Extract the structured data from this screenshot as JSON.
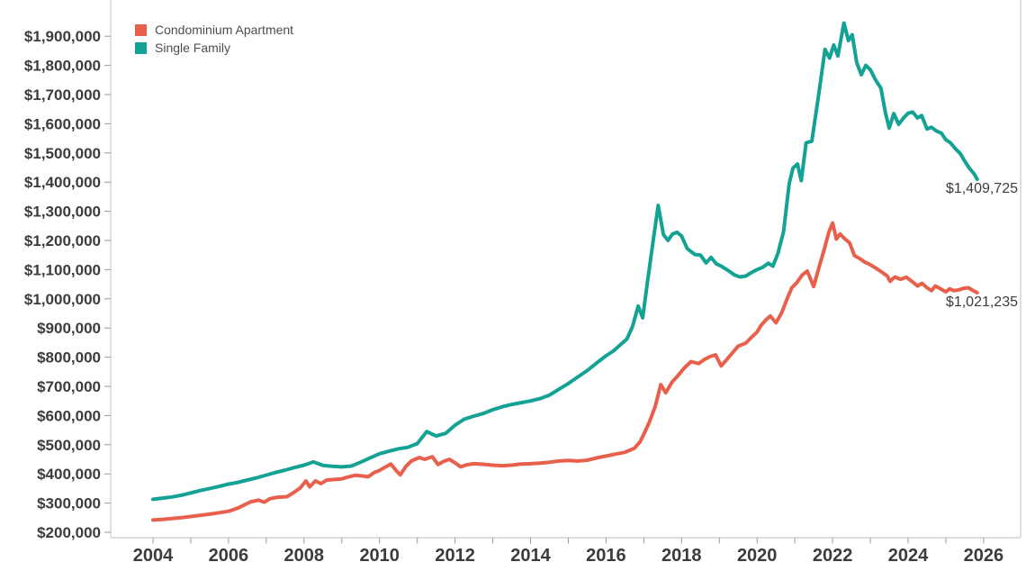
{
  "chart_data": {
    "type": "line",
    "title": "",
    "legend_position": "top-left",
    "grid": "off",
    "x_axis": {
      "label": "",
      "range": [
        2004,
        2026
      ],
      "minor_tick_step": 1,
      "major_tick_years": [
        2004,
        2006,
        2008,
        2010,
        2012,
        2014,
        2016,
        2018,
        2020,
        2022,
        2024,
        2026
      ],
      "major_tick_labels": [
        "2004",
        "2006",
        "2008",
        "2010",
        "2012",
        "2014",
        "2016",
        "2018",
        "2020",
        "2022",
        "2024",
        "2026"
      ]
    },
    "y_axis": {
      "label": "",
      "range": [
        200000,
        2050000
      ],
      "tick_values": [
        200000,
        300000,
        400000,
        500000,
        600000,
        700000,
        800000,
        900000,
        1000000,
        1100000,
        1200000,
        1300000,
        1400000,
        1500000,
        1600000,
        1700000,
        1800000,
        1900000
      ],
      "tick_labels": [
        "$200,000",
        "$300,000",
        "$400,000",
        "$500,000",
        "$600,000",
        "$700,000",
        "$800,000",
        "$900,000",
        "$1,000,000",
        "$1,100,000",
        "$1,200,000",
        "$1,300,000",
        "$1,400,000",
        "$1,500,000",
        "$1,600,000",
        "$1,700,000",
        "$1,800,000",
        "$1,900,000"
      ]
    },
    "series": [
      {
        "name": "Condominium Apartment",
        "color": "#E8604C",
        "end_label": "$1,021,235",
        "points": [
          [
            2004.0,
            242000
          ],
          [
            2004.25,
            244000
          ],
          [
            2004.5,
            247000
          ],
          [
            2004.75,
            250000
          ],
          [
            2005.0,
            254000
          ],
          [
            2005.25,
            258000
          ],
          [
            2005.5,
            262000
          ],
          [
            2005.75,
            267000
          ],
          [
            2006.0,
            272000
          ],
          [
            2006.25,
            283000
          ],
          [
            2006.45,
            296000
          ],
          [
            2006.6,
            305000
          ],
          [
            2006.8,
            310000
          ],
          [
            2006.95,
            303000
          ],
          [
            2007.1,
            315000
          ],
          [
            2007.3,
            320000
          ],
          [
            2007.55,
            322000
          ],
          [
            2007.75,
            338000
          ],
          [
            2007.9,
            352000
          ],
          [
            2008.05,
            376000
          ],
          [
            2008.15,
            356000
          ],
          [
            2008.3,
            376000
          ],
          [
            2008.45,
            367000
          ],
          [
            2008.6,
            379000
          ],
          [
            2008.8,
            381000
          ],
          [
            2009.0,
            383000
          ],
          [
            2009.15,
            389000
          ],
          [
            2009.35,
            395000
          ],
          [
            2009.55,
            393000
          ],
          [
            2009.7,
            390000
          ],
          [
            2009.85,
            404000
          ],
          [
            2010.0,
            412000
          ],
          [
            2010.15,
            423000
          ],
          [
            2010.3,
            434000
          ],
          [
            2010.45,
            410000
          ],
          [
            2010.55,
            397000
          ],
          [
            2010.7,
            426000
          ],
          [
            2010.85,
            445000
          ],
          [
            2011.05,
            456000
          ],
          [
            2011.2,
            450000
          ],
          [
            2011.4,
            459000
          ],
          [
            2011.55,
            432000
          ],
          [
            2011.7,
            443000
          ],
          [
            2011.85,
            450000
          ],
          [
            2012.0,
            438000
          ],
          [
            2012.15,
            424000
          ],
          [
            2012.3,
            431000
          ],
          [
            2012.5,
            435000
          ],
          [
            2012.75,
            433000
          ],
          [
            2013.0,
            430000
          ],
          [
            2013.25,
            428000
          ],
          [
            2013.5,
            430000
          ],
          [
            2013.75,
            434000
          ],
          [
            2014.0,
            435000
          ],
          [
            2014.25,
            437000
          ],
          [
            2014.5,
            440000
          ],
          [
            2014.75,
            444000
          ],
          [
            2015.0,
            446000
          ],
          [
            2015.25,
            444000
          ],
          [
            2015.5,
            447000
          ],
          [
            2015.75,
            455000
          ],
          [
            2016.0,
            461000
          ],
          [
            2016.25,
            468000
          ],
          [
            2016.5,
            474000
          ],
          [
            2016.75,
            488000
          ],
          [
            2016.9,
            510000
          ],
          [
            2017.02,
            542000
          ],
          [
            2017.15,
            578000
          ],
          [
            2017.3,
            630000
          ],
          [
            2017.45,
            706000
          ],
          [
            2017.58,
            678000
          ],
          [
            2017.75,
            715000
          ],
          [
            2017.9,
            736000
          ],
          [
            2018.05,
            760000
          ],
          [
            2018.25,
            785000
          ],
          [
            2018.45,
            778000
          ],
          [
            2018.6,
            792000
          ],
          [
            2018.75,
            802000
          ],
          [
            2018.9,
            808000
          ],
          [
            2019.05,
            770000
          ],
          [
            2019.2,
            792000
          ],
          [
            2019.35,
            815000
          ],
          [
            2019.5,
            838000
          ],
          [
            2019.7,
            848000
          ],
          [
            2019.85,
            868000
          ],
          [
            2020.0,
            886000
          ],
          [
            2020.1,
            908000
          ],
          [
            2020.25,
            930000
          ],
          [
            2020.35,
            941000
          ],
          [
            2020.5,
            918000
          ],
          [
            2020.65,
            952000
          ],
          [
            2020.8,
            1002000
          ],
          [
            2020.92,
            1038000
          ],
          [
            2021.05,
            1055000
          ],
          [
            2021.2,
            1082000
          ],
          [
            2021.33,
            1095000
          ],
          [
            2021.5,
            1042000
          ],
          [
            2021.65,
            1112000
          ],
          [
            2021.78,
            1170000
          ],
          [
            2021.9,
            1228000
          ],
          [
            2022.0,
            1260000
          ],
          [
            2022.1,
            1205000
          ],
          [
            2022.2,
            1222000
          ],
          [
            2022.33,
            1205000
          ],
          [
            2022.45,
            1192000
          ],
          [
            2022.58,
            1148000
          ],
          [
            2022.72,
            1138000
          ],
          [
            2022.85,
            1126000
          ],
          [
            2023.0,
            1117000
          ],
          [
            2023.15,
            1105000
          ],
          [
            2023.3,
            1092000
          ],
          [
            2023.45,
            1078000
          ],
          [
            2023.52,
            1060000
          ],
          [
            2023.65,
            1075000
          ],
          [
            2023.8,
            1067000
          ],
          [
            2023.95,
            1074000
          ],
          [
            2024.1,
            1060000
          ],
          [
            2024.25,
            1044000
          ],
          [
            2024.37,
            1053000
          ],
          [
            2024.5,
            1038000
          ],
          [
            2024.62,
            1028000
          ],
          [
            2024.72,
            1044000
          ],
          [
            2024.85,
            1035000
          ],
          [
            2025.0,
            1024000
          ],
          [
            2025.1,
            1034000
          ],
          [
            2025.22,
            1028000
          ],
          [
            2025.35,
            1031000
          ],
          [
            2025.47,
            1036000
          ],
          [
            2025.6,
            1038000
          ],
          [
            2025.72,
            1028000
          ],
          [
            2025.83,
            1021235
          ]
        ]
      },
      {
        "name": "Single Family",
        "color": "#14A295",
        "end_label": "$1,409,725",
        "points": [
          [
            2004.0,
            313000
          ],
          [
            2004.25,
            317000
          ],
          [
            2004.5,
            321000
          ],
          [
            2004.75,
            327000
          ],
          [
            2005.0,
            335000
          ],
          [
            2005.25,
            343000
          ],
          [
            2005.5,
            350000
          ],
          [
            2005.75,
            357000
          ],
          [
            2006.0,
            365000
          ],
          [
            2006.25,
            371000
          ],
          [
            2006.5,
            379000
          ],
          [
            2006.75,
            387000
          ],
          [
            2007.0,
            396000
          ],
          [
            2007.25,
            405000
          ],
          [
            2007.5,
            413000
          ],
          [
            2007.75,
            422000
          ],
          [
            2008.0,
            430000
          ],
          [
            2008.25,
            441000
          ],
          [
            2008.5,
            429000
          ],
          [
            2008.75,
            426000
          ],
          [
            2009.0,
            424000
          ],
          [
            2009.25,
            427000
          ],
          [
            2009.5,
            440000
          ],
          [
            2009.75,
            455000
          ],
          [
            2010.0,
            469000
          ],
          [
            2010.25,
            478000
          ],
          [
            2010.5,
            486000
          ],
          [
            2010.75,
            491000
          ],
          [
            2011.0,
            504000
          ],
          [
            2011.25,
            545000
          ],
          [
            2011.5,
            530000
          ],
          [
            2011.75,
            539000
          ],
          [
            2012.0,
            567000
          ],
          [
            2012.25,
            588000
          ],
          [
            2012.5,
            598000
          ],
          [
            2012.75,
            607000
          ],
          [
            2013.0,
            620000
          ],
          [
            2013.25,
            630000
          ],
          [
            2013.5,
            638000
          ],
          [
            2013.75,
            644000
          ],
          [
            2014.0,
            650000
          ],
          [
            2014.25,
            658000
          ],
          [
            2014.5,
            670000
          ],
          [
            2014.75,
            690000
          ],
          [
            2015.0,
            710000
          ],
          [
            2015.25,
            732000
          ],
          [
            2015.5,
            754000
          ],
          [
            2015.75,
            780000
          ],
          [
            2016.0,
            805000
          ],
          [
            2016.2,
            822000
          ],
          [
            2016.4,
            845000
          ],
          [
            2016.55,
            862000
          ],
          [
            2016.7,
            905000
          ],
          [
            2016.85,
            975000
          ],
          [
            2016.97,
            935000
          ],
          [
            2017.1,
            1060000
          ],
          [
            2017.25,
            1200000
          ],
          [
            2017.38,
            1320000
          ],
          [
            2017.52,
            1220000
          ],
          [
            2017.64,
            1200000
          ],
          [
            2017.76,
            1222000
          ],
          [
            2017.88,
            1228000
          ],
          [
            2018.0,
            1215000
          ],
          [
            2018.15,
            1172000
          ],
          [
            2018.35,
            1152000
          ],
          [
            2018.5,
            1150000
          ],
          [
            2018.65,
            1123000
          ],
          [
            2018.78,
            1142000
          ],
          [
            2018.92,
            1120000
          ],
          [
            2019.05,
            1112000
          ],
          [
            2019.2,
            1100000
          ],
          [
            2019.4,
            1082000
          ],
          [
            2019.55,
            1075000
          ],
          [
            2019.7,
            1078000
          ],
          [
            2019.85,
            1090000
          ],
          [
            2020.0,
            1100000
          ],
          [
            2020.15,
            1108000
          ],
          [
            2020.3,
            1122000
          ],
          [
            2020.42,
            1112000
          ],
          [
            2020.55,
            1155000
          ],
          [
            2020.7,
            1230000
          ],
          [
            2020.85,
            1395000
          ],
          [
            2020.95,
            1448000
          ],
          [
            2021.07,
            1462000
          ],
          [
            2021.17,
            1405000
          ],
          [
            2021.3,
            1535000
          ],
          [
            2021.45,
            1540000
          ],
          [
            2021.62,
            1690000
          ],
          [
            2021.8,
            1855000
          ],
          [
            2021.92,
            1825000
          ],
          [
            2022.03,
            1870000
          ],
          [
            2022.14,
            1832000
          ],
          [
            2022.3,
            1945000
          ],
          [
            2022.42,
            1885000
          ],
          [
            2022.52,
            1905000
          ],
          [
            2022.64,
            1810000
          ],
          [
            2022.76,
            1768000
          ],
          [
            2022.88,
            1800000
          ],
          [
            2023.0,
            1785000
          ],
          [
            2023.13,
            1752000
          ],
          [
            2023.28,
            1722000
          ],
          [
            2023.4,
            1638000
          ],
          [
            2023.5,
            1585000
          ],
          [
            2023.62,
            1635000
          ],
          [
            2023.75,
            1598000
          ],
          [
            2023.88,
            1620000
          ],
          [
            2024.0,
            1636000
          ],
          [
            2024.12,
            1640000
          ],
          [
            2024.25,
            1620000
          ],
          [
            2024.36,
            1628000
          ],
          [
            2024.5,
            1582000
          ],
          [
            2024.62,
            1588000
          ],
          [
            2024.75,
            1575000
          ],
          [
            2024.88,
            1568000
          ],
          [
            2025.0,
            1545000
          ],
          [
            2025.12,
            1535000
          ],
          [
            2025.25,
            1515000
          ],
          [
            2025.38,
            1498000
          ],
          [
            2025.5,
            1472000
          ],
          [
            2025.62,
            1448000
          ],
          [
            2025.75,
            1428000
          ],
          [
            2025.83,
            1409725
          ]
        ]
      }
    ]
  }
}
